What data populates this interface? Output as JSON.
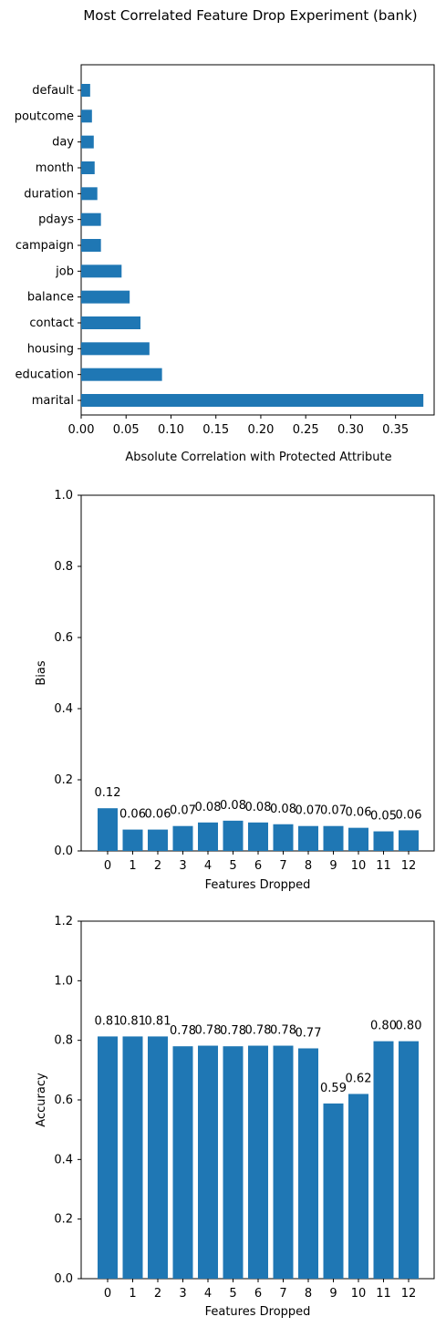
{
  "page_title": "Most Correlated Feature Drop Experiment (bank)",
  "bar_color": "#1f77b4",
  "chart_data": [
    {
      "type": "bar",
      "orientation": "horizontal",
      "categories": [
        "default",
        "poutcome",
        "day",
        "month",
        "duration",
        "pdays",
        "campaign",
        "job",
        "balance",
        "contact",
        "housing",
        "education",
        "marital"
      ],
      "values": [
        0.01,
        0.012,
        0.014,
        0.015,
        0.018,
        0.022,
        0.022,
        0.045,
        0.054,
        0.066,
        0.076,
        0.09,
        0.381
      ],
      "xlabel": "Absolute Correlation with Protected Attribute",
      "ylabel": "",
      "xlim": [
        0,
        0.393
      ],
      "xticks": [
        "0.00",
        "0.05",
        "0.10",
        "0.15",
        "0.20",
        "0.25",
        "0.30",
        "0.35"
      ],
      "grid": false
    },
    {
      "type": "bar",
      "categories": [
        "0",
        "1",
        "2",
        "3",
        "4",
        "5",
        "6",
        "7",
        "8",
        "9",
        "10",
        "11",
        "12"
      ],
      "values": [
        0.12,
        0.06,
        0.06,
        0.07,
        0.08,
        0.085,
        0.08,
        0.075,
        0.07,
        0.07,
        0.065,
        0.055,
        0.058
      ],
      "data_labels": [
        "0.12",
        "0.06",
        "0.06",
        "0.07",
        "0.08",
        "0.08",
        "0.08",
        "0.08",
        "0.07",
        "0.07",
        "0.06",
        "0.05",
        "0.06"
      ],
      "xlabel": "Features Dropped",
      "ylabel": "Bias",
      "ylim": [
        0,
        1.0
      ],
      "yticks": [
        "0.0",
        "0.2",
        "0.4",
        "0.6",
        "0.8",
        "1.0"
      ],
      "grid": false
    },
    {
      "type": "bar",
      "categories": [
        "0",
        "1",
        "2",
        "3",
        "4",
        "5",
        "6",
        "7",
        "8",
        "9",
        "10",
        "11",
        "12"
      ],
      "values": [
        0.813,
        0.813,
        0.813,
        0.78,
        0.782,
        0.78,
        0.782,
        0.782,
        0.773,
        0.588,
        0.62,
        0.797,
        0.797
      ],
      "data_labels": [
        "0.81",
        "0.81",
        "0.81",
        "0.78",
        "0.78",
        "0.78",
        "0.78",
        "0.78",
        "0.77",
        "0.59",
        "0.62",
        "0.80",
        "0.80"
      ],
      "xlabel": "Features Dropped",
      "ylabel": "Accuracy",
      "ylim": [
        0,
        1.2
      ],
      "yticks": [
        "0.0",
        "0.2",
        "0.4",
        "0.6",
        "0.8",
        "1.0",
        "1.2"
      ],
      "grid": false
    }
  ]
}
